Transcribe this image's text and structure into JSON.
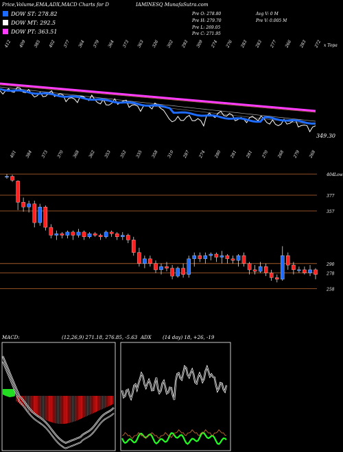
{
  "header": {
    "title_left": "Price,Volume,EMA,ADX,MACD Charts for D",
    "title_right": "IAMINESQ MunafaSutra.com"
  },
  "dow": [
    {
      "label": "DOW ST: 278.82",
      "color": "#1e6cff"
    },
    {
      "label": "DOW MT: 292.5",
      "color": "#ffffff"
    },
    {
      "label": "DOW PT: 363.51",
      "color": "#ff3cff"
    }
  ],
  "ohlc": {
    "open": "Pre  O: 278.80",
    "high": "Pre  H: 279.70",
    "low": "Pre  L: 269.05",
    "close": "Pre  C: 271.95",
    "avg_vol": "Avg V: 0  M",
    "pre_vol": "Pre  V: 0.005 M"
  },
  "top_ticks": [
    "412",
    "409",
    "385",
    "402",
    "377",
    "364",
    "379",
    "364",
    "373",
    "363",
    "326",
    "302",
    "293",
    "309",
    "274",
    "276",
    "283",
    "283",
    "277",
    "266",
    "283",
    "272"
  ],
  "mid_ticks": [
    "401",
    "384",
    "373",
    "370",
    "368",
    "362",
    "353",
    "352",
    "335",
    "358",
    "310",
    "287",
    "274",
    "280",
    "281",
    "281",
    "270",
    "268",
    "279",
    "268"
  ],
  "top_right_label": "x Topa",
  "ema_last_label": "349.30",
  "price_levels": [
    "404",
    "377",
    "357",
    "290",
    "278",
    "258"
  ],
  "price_level_suffix": "Lower",
  "macd": {
    "label": "MACD:",
    "values": "(12,26,9) 271.18, 276.85, -5.63"
  },
  "adx": {
    "label": "ADX",
    "values": "(14 day) 18, +26, -19"
  },
  "chart_data": {
    "type": "candlestick",
    "up_color": "#1e6cff",
    "down_color": "#ff2020",
    "candles": [
      [
        400,
        404,
        398,
        401
      ],
      [
        401,
        403,
        394,
        396
      ],
      [
        395,
        396,
        358,
        368
      ],
      [
        368,
        374,
        356,
        362
      ],
      [
        362,
        370,
        355,
        366
      ],
      [
        366,
        370,
        336,
        342
      ],
      [
        342,
        366,
        338,
        362
      ],
      [
        362,
        364,
        332,
        336
      ],
      [
        336,
        340,
        322,
        326
      ],
      [
        326,
        332,
        320,
        328
      ],
      [
        328,
        330,
        322,
        326
      ],
      [
        326,
        332,
        322,
        330
      ],
      [
        330,
        332,
        320,
        326
      ],
      [
        326,
        334,
        323,
        330
      ],
      [
        330,
        332,
        320,
        324
      ],
      [
        324,
        330,
        322,
        328
      ],
      [
        328,
        330,
        324,
        326
      ],
      [
        326,
        328,
        320,
        324
      ],
      [
        324,
        332,
        322,
        330
      ],
      [
        330,
        332,
        324,
        328
      ],
      [
        328,
        330,
        320,
        324
      ],
      [
        324,
        330,
        320,
        326
      ],
      [
        326,
        328,
        316,
        320
      ],
      [
        320,
        324,
        300,
        304
      ],
      [
        304,
        310,
        286,
        290
      ],
      [
        290,
        300,
        284,
        296
      ],
      [
        296,
        300,
        286,
        290
      ],
      [
        290,
        294,
        278,
        282
      ],
      [
        282,
        290,
        276,
        286
      ],
      [
        286,
        292,
        280,
        284
      ],
      [
        284,
        288,
        270,
        274
      ],
      [
        274,
        286,
        272,
        284
      ],
      [
        284,
        290,
        272,
        276
      ],
      [
        276,
        300,
        272,
        296
      ],
      [
        296,
        304,
        286,
        300
      ],
      [
        300,
        304,
        292,
        296
      ],
      [
        296,
        304,
        290,
        300
      ],
      [
        300,
        304,
        294,
        302
      ],
      [
        302,
        304,
        292,
        298
      ],
      [
        298,
        306,
        290,
        300
      ],
      [
        300,
        302,
        290,
        296
      ],
      [
        296,
        300,
        290,
        294
      ],
      [
        294,
        302,
        286,
        300
      ],
      [
        300,
        304,
        286,
        290
      ],
      [
        290,
        292,
        276,
        282
      ],
      [
        282,
        288,
        276,
        280
      ],
      [
        280,
        292,
        278,
        286
      ],
      [
        286,
        290,
        274,
        278
      ],
      [
        278,
        282,
        268,
        272
      ],
      [
        272,
        276,
        266,
        270
      ],
      [
        270,
        312,
        268,
        300
      ],
      [
        300,
        304,
        282,
        288
      ],
      [
        288,
        292,
        276,
        282
      ],
      [
        282,
        286,
        278,
        282
      ],
      [
        282,
        286,
        276,
        278
      ],
      [
        278,
        288,
        274,
        282
      ],
      [
        282,
        284,
        270,
        276
      ]
    ],
    "y_range": [
      220,
      425
    ],
    "ema_series": [
      {
        "name": "EMA short",
        "color": "#1e6cff"
      },
      {
        "name": "EMA mid",
        "color": "#ffffff"
      },
      {
        "name": "EMA long",
        "color": "#ff3cff"
      }
    ]
  }
}
